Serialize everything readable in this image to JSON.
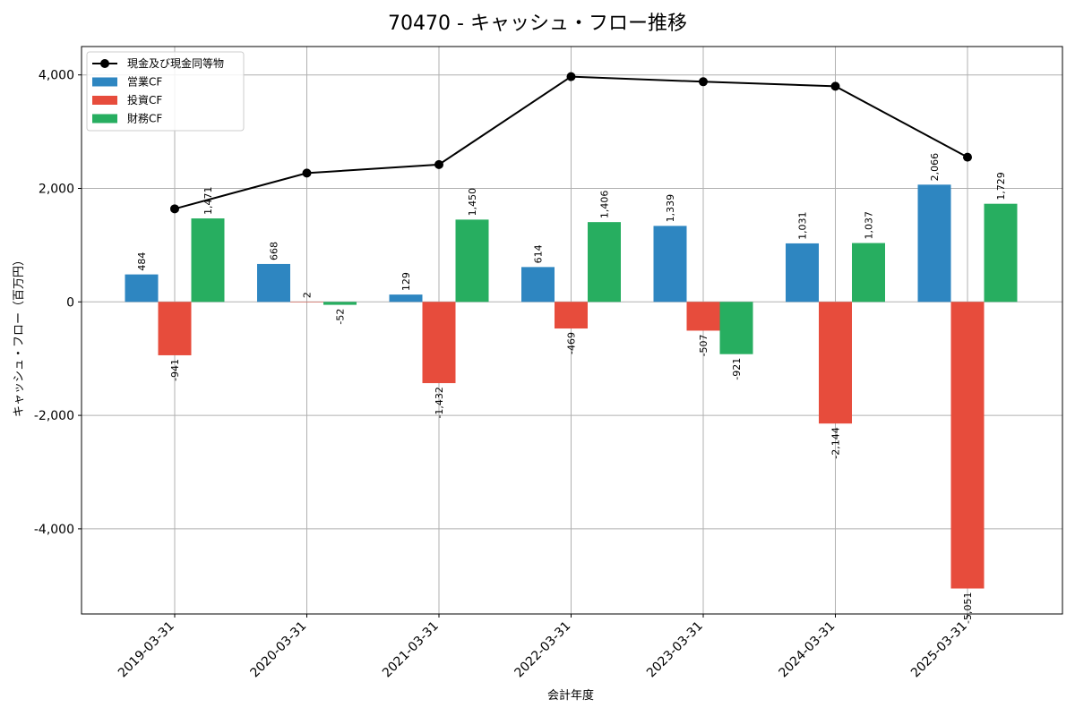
{
  "chart_data": {
    "type": "bar",
    "title": "70470 - キャッシュ・フロー推移",
    "xlabel": "会計年度",
    "ylabel": "キャッシュ・フロー（百万円）",
    "categories": [
      "2019-03-31",
      "2020-03-31",
      "2021-03-31",
      "2022-03-31",
      "2023-03-31",
      "2024-03-31",
      "2025-03-31"
    ],
    "ylim": [
      -5500,
      4500
    ],
    "yticks": [
      -4000,
      -2000,
      0,
      2000,
      4000
    ],
    "ytick_labels": [
      "-4,000",
      "-2,000",
      "0",
      "2,000",
      "4,000"
    ],
    "grid": true,
    "legend_position": "top-left",
    "series": [
      {
        "name": "営業CF",
        "kind": "bar",
        "color": "#2e86c1",
        "values": [
          484,
          668,
          129,
          614,
          1339,
          1031,
          2066
        ],
        "labels": [
          "484",
          "668",
          "129",
          "614",
          "1,339",
          "1,031",
          "2,066"
        ]
      },
      {
        "name": "投資CF",
        "kind": "bar",
        "color": "#e74c3c",
        "values": [
          -941,
          2,
          -1432,
          -469,
          -507,
          -2144,
          -5051
        ],
        "labels": [
          "-941",
          "2",
          "-1,432",
          "-469",
          "-507",
          "-2,144",
          "-5,051"
        ]
      },
      {
        "name": "財務CF",
        "kind": "bar",
        "color": "#27ae60",
        "values": [
          1471,
          -52,
          1450,
          1406,
          -921,
          1037,
          1729
        ],
        "labels": [
          "1,471",
          "-52",
          "1,450",
          "1,406",
          "-921",
          "1,037",
          "1,729"
        ]
      },
      {
        "name": "現金及び現金同等物",
        "kind": "line",
        "color": "#000000",
        "values": [
          1640,
          2270,
          2420,
          3970,
          3880,
          3800,
          2550
        ]
      }
    ]
  }
}
